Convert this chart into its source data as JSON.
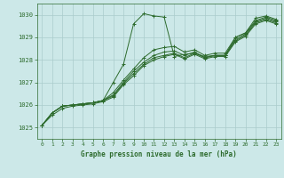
{
  "title": "Graphe pression niveau de la mer (hPa)",
  "bg_color": "#cce8e8",
  "grid_color": "#aacccc",
  "line_color": "#2d6b2d",
  "xlim": [
    -0.5,
    23.5
  ],
  "ylim": [
    1024.5,
    1030.5
  ],
  "yticks": [
    1025,
    1026,
    1027,
    1028,
    1029,
    1030
  ],
  "xticks": [
    0,
    1,
    2,
    3,
    4,
    5,
    6,
    7,
    8,
    9,
    10,
    11,
    12,
    13,
    14,
    15,
    16,
    17,
    18,
    19,
    20,
    21,
    22,
    23
  ],
  "series": [
    [
      1025.1,
      1025.65,
      1025.95,
      1026.0,
      1026.05,
      1026.1,
      1026.2,
      1027.0,
      1027.8,
      1029.6,
      1030.05,
      1029.95,
      1029.9,
      1028.15,
      1028.25,
      1028.3,
      1028.15,
      1028.2,
      1028.2,
      1029.0,
      1029.2,
      1029.85,
      1029.95,
      1029.8
    ],
    [
      1025.1,
      1025.65,
      1025.95,
      1026.0,
      1026.05,
      1026.1,
      1026.2,
      1026.55,
      1027.1,
      1027.6,
      1028.1,
      1028.45,
      1028.55,
      1028.6,
      1028.35,
      1028.45,
      1028.2,
      1028.3,
      1028.3,
      1029.0,
      1029.2,
      1029.75,
      1029.9,
      1029.75
    ],
    [
      1025.1,
      1025.65,
      1025.95,
      1026.0,
      1026.05,
      1026.1,
      1026.2,
      1026.45,
      1027.0,
      1027.5,
      1027.9,
      1028.2,
      1028.35,
      1028.4,
      1028.2,
      1028.35,
      1028.1,
      1028.2,
      1028.2,
      1028.9,
      1029.15,
      1029.7,
      1029.85,
      1029.7
    ],
    [
      1025.1,
      1025.65,
      1025.95,
      1026.0,
      1026.05,
      1026.1,
      1026.2,
      1026.4,
      1026.95,
      1027.4,
      1027.8,
      1028.1,
      1028.2,
      1028.3,
      1028.1,
      1028.3,
      1028.1,
      1028.2,
      1028.2,
      1028.85,
      1029.1,
      1029.65,
      1029.8,
      1029.65
    ],
    [
      1025.1,
      1025.55,
      1025.85,
      1025.95,
      1026.0,
      1026.05,
      1026.15,
      1026.35,
      1026.9,
      1027.3,
      1027.75,
      1028.0,
      1028.15,
      1028.25,
      1028.05,
      1028.25,
      1028.05,
      1028.15,
      1028.15,
      1028.8,
      1029.05,
      1029.6,
      1029.75,
      1029.6
    ]
  ]
}
